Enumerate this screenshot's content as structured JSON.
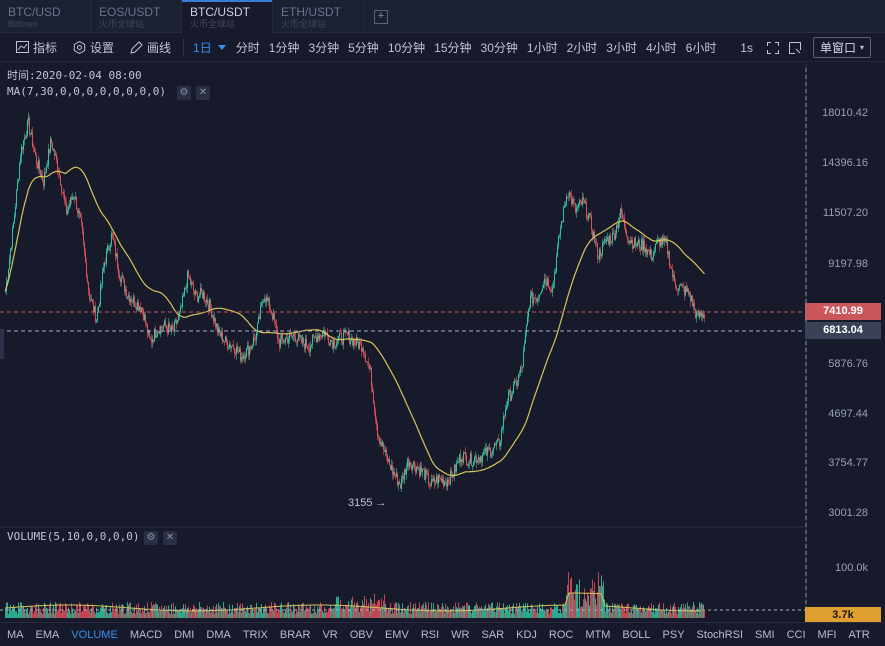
{
  "tabs": [
    {
      "pair": "BTC/USD",
      "exchange": "Bitfinex"
    },
    {
      "pair": "EOS/USDT",
      "exchange": "火币全球站"
    },
    {
      "pair": "BTC/USDT",
      "exchange": "火币全球站",
      "active": true
    },
    {
      "pair": "ETH/USDT",
      "exchange": "火币全球站"
    }
  ],
  "tab_add_label": "+",
  "toolbar": {
    "indicators_label": "指标",
    "settings_label": "设置",
    "draw_label": "画线",
    "periods": [
      "1日",
      "分时",
      "1分钟",
      "3分钟",
      "5分钟",
      "10分钟",
      "15分钟",
      "30分钟",
      "1小时",
      "2小时",
      "3小时",
      "4小时",
      "6小时"
    ],
    "active_period": "1日",
    "refresh_label": "1s",
    "window_mode": "单窗口"
  },
  "chart": {
    "time_label": "时间:2020-02-04 08:00",
    "ma_label": "MA(7,30,0,0,0,0,0,0,0,0)",
    "volume_label": "VOLUME(5,10,0,0,0,0)",
    "price_axis": [
      "18010.42",
      "14396.16",
      "11507.20",
      "9197.98",
      "5876.76",
      "4697.44",
      "3754.77",
      "3001.28"
    ],
    "volume_axis": [
      "100.0k"
    ],
    "last_price": "7410.99",
    "cursor_price": "6813.04",
    "last_volume": "3.7k",
    "low_label": "3155",
    "colors": {
      "up": "#2ec4a0",
      "down": "#e0505a",
      "ma7": "#d7c45a",
      "ma30": "#d7c45a",
      "last_price_tag": "#c9575d",
      "cursor_tag": "#3b4258",
      "volume_tag": "#e0a030"
    }
  },
  "indicators": [
    "MA",
    "EMA",
    "VOLUME",
    "MACD",
    "DMI",
    "DMA",
    "TRIX",
    "BRAR",
    "VR",
    "OBV",
    "EMV",
    "RSI",
    "WR",
    "SAR",
    "KDJ",
    "ROC",
    "MTM",
    "BOLL",
    "PSY",
    "StochRSI",
    "SMI",
    "CCI",
    "MFI",
    "ATR"
  ],
  "active_indicator": "VOLUME",
  "chart_data": {
    "type": "candlestick",
    "y_scale": "log",
    "ylim": [
      2900,
      19500
    ],
    "prices": [
      8200,
      10900,
      15400,
      17600,
      14900,
      13500,
      16200,
      14200,
      11700,
      12800,
      10900,
      8100,
      7200,
      9300,
      10600,
      8900,
      8100,
      7800,
      7600,
      6500,
      6900,
      7000,
      6800,
      7400,
      8800,
      8000,
      8100,
      7600,
      6800,
      6500,
      6400,
      6100,
      6300,
      6700,
      8100,
      7500,
      6500,
      6600,
      6700,
      6500,
      6400,
      6700,
      6800,
      6500,
      6600,
      6700,
      6500,
      6400,
      5700,
      4300,
      3900,
      3600,
      3400,
      3800,
      3700,
      3600,
      3400,
      3500,
      3450,
      3600,
      3900,
      3800,
      3850,
      3900,
      4000,
      4100,
      5000,
      5300,
      5800,
      7900,
      8000,
      8700,
      8300,
      10800,
      13000,
      11800,
      12300,
      11200,
      9600,
      10300,
      10500,
      11700,
      10400,
      10100,
      10100,
      9600,
      10300,
      10100,
      8500,
      8300,
      8100,
      7300,
      7400
    ]
  }
}
